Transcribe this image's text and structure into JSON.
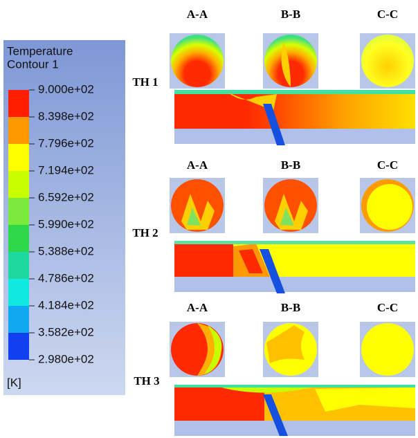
{
  "legend": {
    "title": "Temperature",
    "subtitle": "Contour 1",
    "levels": [
      "9.000e+02",
      "8.398e+02",
      "7.796e+02",
      "7.194e+02",
      "6.592e+02",
      "5.990e+02",
      "5.388e+02",
      "4.786e+02",
      "4.184e+02",
      "3.582e+02",
      "2.980e+02"
    ],
    "unit": "[K]"
  },
  "rows": [
    {
      "label": "TH 1",
      "sections": [
        "A-A",
        "B-B",
        "C-C"
      ]
    },
    {
      "label": "TH 2",
      "sections": [
        "A-A",
        "B-B",
        "C-C"
      ]
    },
    {
      "label": "TH 3",
      "sections": [
        "A-A",
        "B-B",
        "C-C"
      ]
    }
  ]
}
